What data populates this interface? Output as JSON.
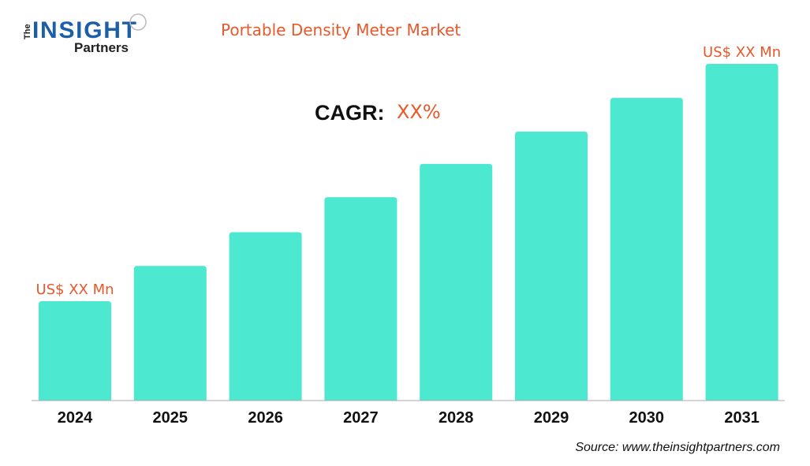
{
  "brand": {
    "logo_text": "The INSIGHT Partners"
  },
  "chart_data": {
    "type": "bar",
    "title": "Portable Density Meter Market",
    "categories": [
      "2024",
      "2025",
      "2026",
      "2027",
      "2028",
      "2029",
      "2030",
      "2031"
    ],
    "values": [
      29.5,
      40,
      50,
      60.4,
      70.3,
      79.9,
      89.9,
      100
    ],
    "value_note": "relative scale (2031 = 100); no y-axis printed",
    "data_labels": {
      "first": "US$ XX Mn",
      "last": "US$ XX Mn"
    },
    "cagr_label": "CAGR:",
    "cagr_value": "XX%",
    "xlabel": "",
    "ylabel": "",
    "grid": false,
    "colors": {
      "bar": "#4de8d0",
      "accent": "#e8582a",
      "logo_blue": "#1c5fa8"
    }
  },
  "source": "Source: www.theinsightpartners.com"
}
